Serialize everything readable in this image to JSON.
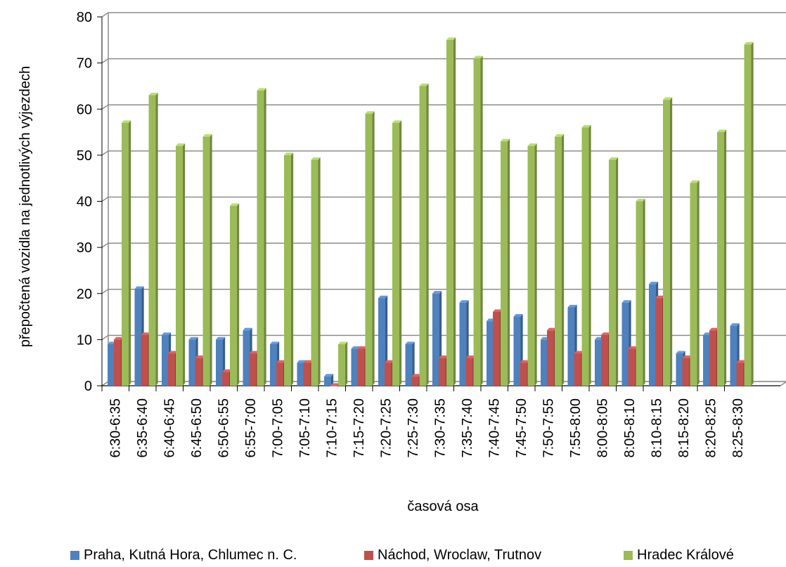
{
  "chart_data": {
    "type": "bar",
    "title": "",
    "xlabel": "časová osa",
    "ylabel": "přepočtená  vozidla na jednotlivých výjezdech",
    "ylim": [
      0,
      80
    ],
    "yticks": [
      "0",
      "10",
      "20",
      "30",
      "40",
      "50",
      "60",
      "70",
      "80"
    ],
    "grid": true,
    "legend_position": "bottom",
    "style": "3d clustered columns",
    "categories": [
      "6:30-6:35",
      "6:35-6:40",
      "6:40-6:45",
      "6:45-6:50",
      "6:50-6:55",
      "6:55-7:00",
      "7:00-7:05",
      "7:05-7:10",
      "7:10-7:15",
      "7:15-7:20",
      "7:20-7:25",
      "7:25-7:30",
      "7:30-7:35",
      "7:35-7:40",
      "7:40-7:45",
      "7:45-7:50",
      "7:50-7:55",
      "7:55-8:00",
      "8:00-8:05",
      "8:05-8:10",
      "8:10-8:15",
      "8:15-8:20",
      "8:20-8:25",
      "8:25-8:30"
    ],
    "series": [
      {
        "name": "Praha, Kutná Hora, Chlumec n. C.",
        "color": "#4f81bd",
        "values": [
          9,
          21,
          11,
          10,
          10,
          12,
          9,
          5,
          2,
          8,
          19,
          9,
          20,
          18,
          14,
          15,
          10,
          17,
          10,
          18,
          22,
          7,
          11,
          13
        ]
      },
      {
        "name": "Náchod, Wroclaw, Trutnov",
        "color": "#c0504d",
        "values": [
          10,
          11,
          7,
          6,
          3,
          7,
          5,
          5,
          0,
          8,
          5,
          2,
          6,
          6,
          16,
          5,
          12,
          7,
          11,
          8,
          19,
          6,
          12,
          5
        ]
      },
      {
        "name": "Hradec Králové",
        "color": "#9bbb59",
        "values": [
          57,
          63,
          52,
          54,
          39,
          64,
          50,
          49,
          9,
          59,
          57,
          65,
          75,
          71,
          53,
          52,
          54,
          56,
          49,
          40,
          62,
          44,
          55,
          74
        ]
      }
    ]
  }
}
